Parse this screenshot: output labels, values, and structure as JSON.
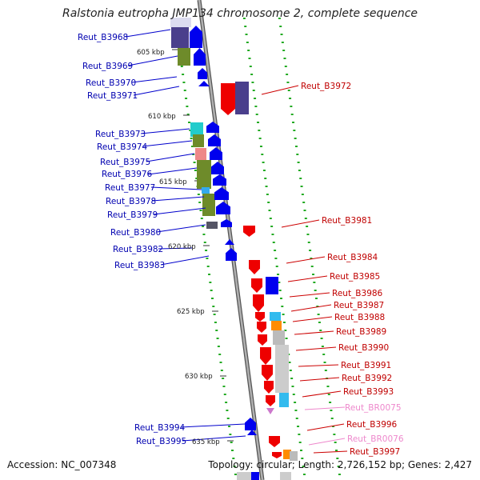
{
  "header": {
    "title": "Ralstonia eutropha JMP134 chromosome 2, complete sequence"
  },
  "footer": {
    "accession": "Accession: NC_007348",
    "summary": "Topology: circular; Length: 2,726,152 bp; Genes: 2,427"
  },
  "ticks": [
    "605 kbp",
    "610 kbp",
    "615 kbp",
    "620 kbp",
    "625 kbp",
    "630 kbp",
    "635 kbp"
  ],
  "genes_left": [
    "Reut_B3968",
    "Reut_B3969",
    "Reut_B3970",
    "Reut_B3971",
    "Reut_B3973",
    "Reut_B3974",
    "Reut_B3975",
    "Reut_B3976",
    "Reut_B3977",
    "Reut_B3978",
    "Reut_B3979",
    "Reut_B3980",
    "Reut_B3982",
    "Reut_B3983",
    "Reut_B3994",
    "Reut_B3995"
  ],
  "genes_right": [
    "Reut_B3972",
    "Reut_B3981",
    "Reut_B3984",
    "Reut_B3985",
    "Reut_B3986",
    "Reut_B3987",
    "Reut_B3988",
    "Reut_B3989",
    "Reut_B3990",
    "Reut_B3991",
    "Reut_B3992",
    "Reut_B3993",
    "Reut_BR0075",
    "Reut_B3996",
    "Reut_BR0076",
    "Reut_B3997"
  ],
  "colors": {
    "forward": "#0000ee",
    "reverse": "#ee0000",
    "rna": "#ee88cc",
    "backbone": "#888888",
    "dots": "#22aa22"
  }
}
